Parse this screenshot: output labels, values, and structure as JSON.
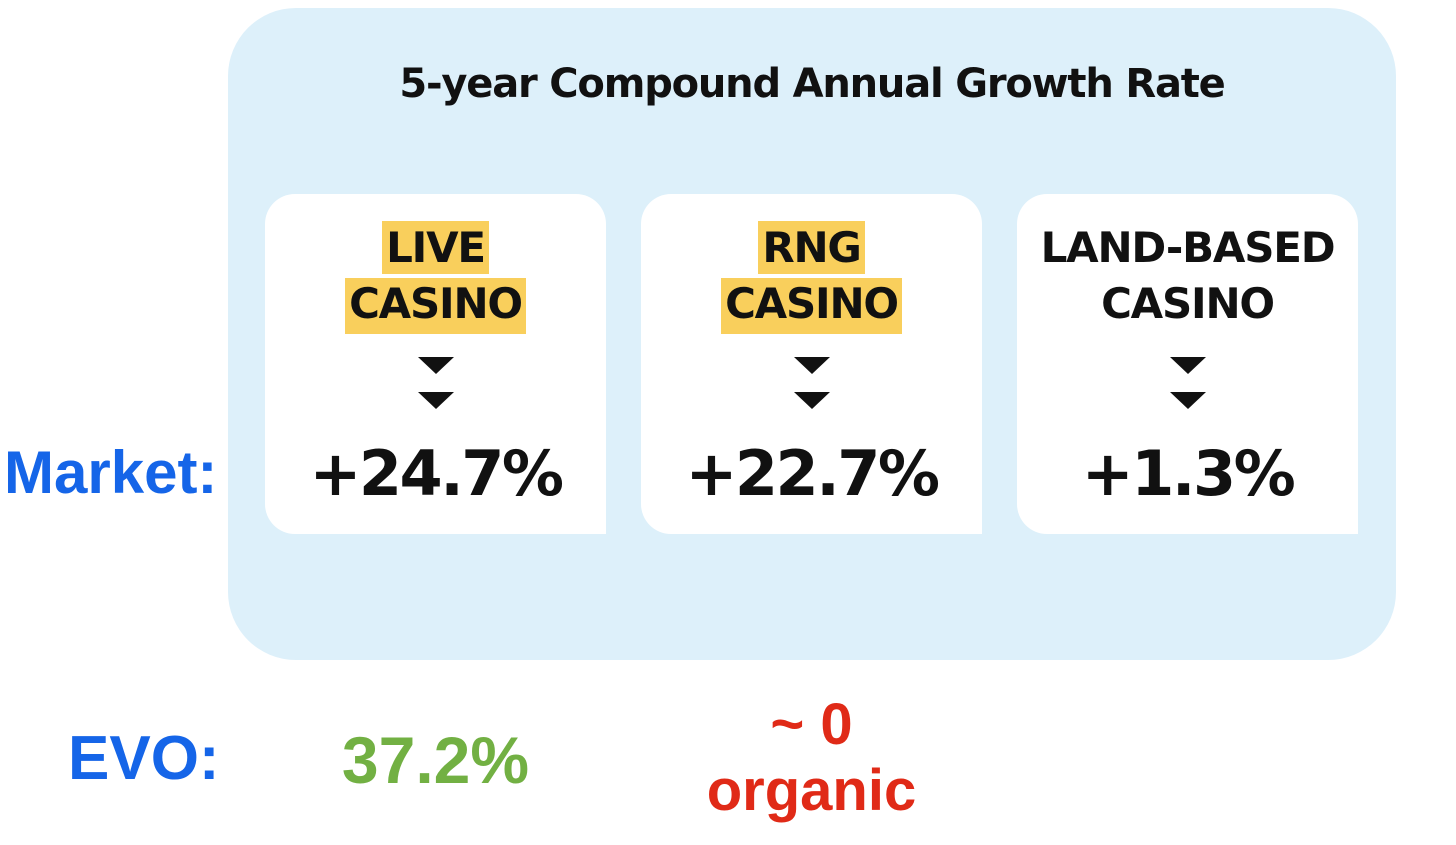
{
  "title": "5-year Compound Annual Growth Rate",
  "row_labels": {
    "market": "Market:",
    "evo": "EVO:"
  },
  "segments": [
    {
      "label_line1": "LIVE",
      "label_line2": "CASINO",
      "highlighted": true,
      "market_cagr": "+24.7%",
      "evo": "37.2%"
    },
    {
      "label_line1": "RNG",
      "label_line2": "CASINO",
      "highlighted": true,
      "market_cagr": "+22.7%",
      "evo_line1": "~ 0",
      "evo_line2": "organic"
    },
    {
      "label_line1": "LAND-BASED",
      "label_line2": "CASINO",
      "highlighted": false,
      "market_cagr": "+1.3%"
    }
  ],
  "colors": {
    "panel_bg": "#ddf0fa",
    "highlight": "#f9cf5c",
    "row_label": "#1565e8",
    "evo_positive": "#72b043",
    "evo_neutral": "#e02a17"
  },
  "icons": [
    "double-down-arrow-icon"
  ]
}
